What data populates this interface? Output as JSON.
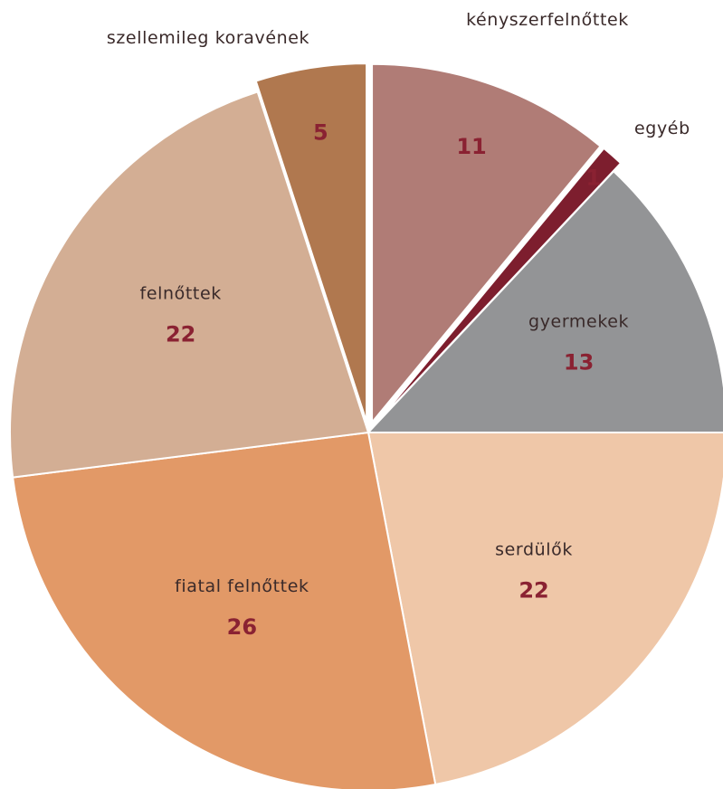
{
  "chart_data": {
    "type": "pie",
    "title": "",
    "slices": [
      {
        "label": "kényszerfelnőttek",
        "value": 11,
        "color": "#b07c76",
        "exploded": true
      },
      {
        "label": "egyéb",
        "value": 1,
        "color": "#7d1e2e",
        "exploded": true
      },
      {
        "label": "gyermekek",
        "value": 13,
        "color": "#939496",
        "exploded": false
      },
      {
        "label": "serdülők",
        "value": 22,
        "color": "#efc7a8",
        "exploded": false
      },
      {
        "label": "fiatal felnőttek",
        "value": 26,
        "color": "#e29967",
        "exploded": false
      },
      {
        "label": "felnőttek",
        "value": 22,
        "color": "#d3ae94",
        "exploded": false
      },
      {
        "label": "szellemileg koravének",
        "value": 5,
        "color": "#b0784f",
        "exploded": true
      }
    ],
    "value_label_color": "#8a2232"
  }
}
